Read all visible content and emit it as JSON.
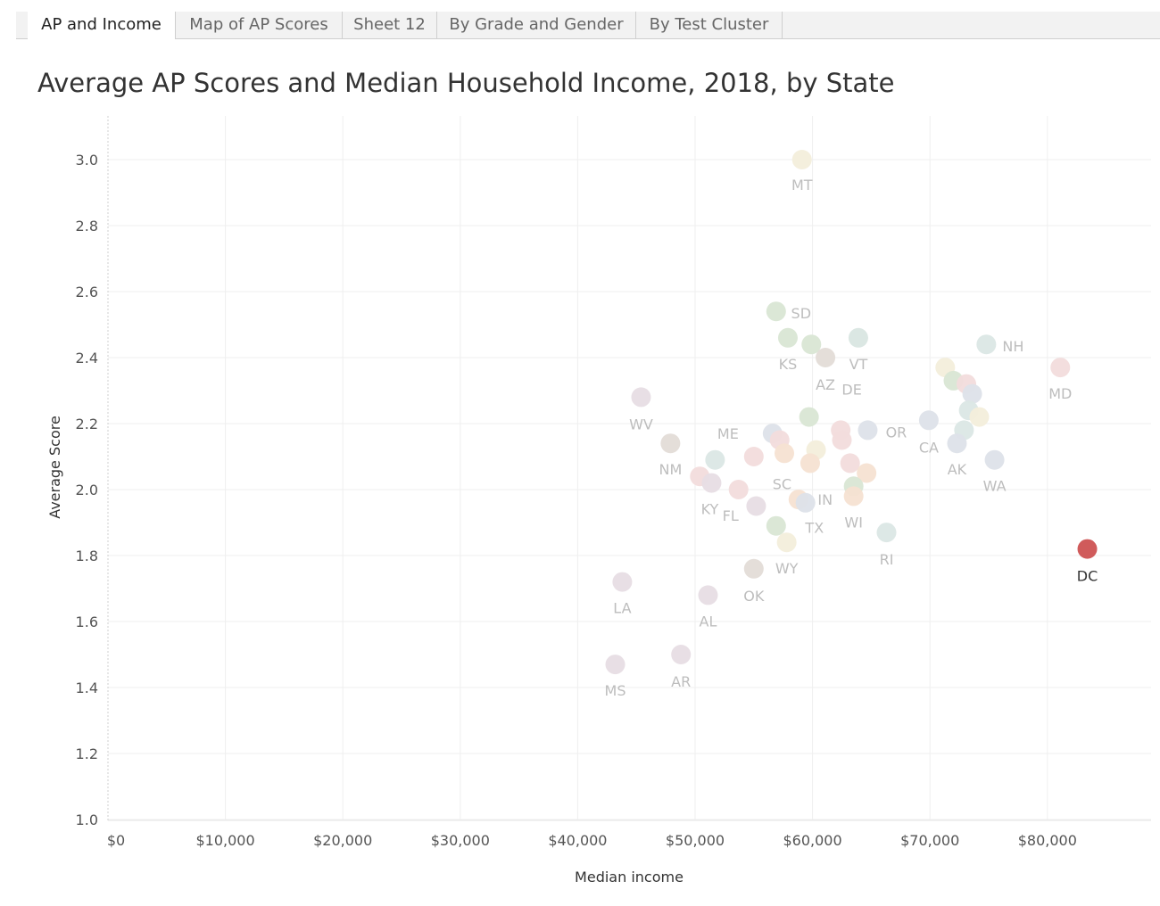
{
  "tabs": [
    {
      "label": "AP and Income",
      "active": true
    },
    {
      "label": "Map of AP Scores",
      "active": false
    },
    {
      "label": "Sheet 12",
      "active": false
    },
    {
      "label": "By Grade and Gender",
      "active": false
    },
    {
      "label": "By Test Cluster",
      "active": false
    }
  ],
  "chart_data": {
    "type": "scatter",
    "title": "Average AP Scores and Median Household Income, 2018, by State",
    "xlabel": "Median income",
    "ylabel": "Average Score",
    "xlim": [
      0,
      88000
    ],
    "ylim": [
      0.97,
      3.13
    ],
    "x_ticks": [
      0,
      10000,
      20000,
      30000,
      40000,
      50000,
      60000,
      70000,
      80000
    ],
    "x_tick_labels": [
      "$0",
      "$10,000",
      "$20,000",
      "$30,000",
      "$40,000",
      "$50,000",
      "$60,000",
      "$70,000",
      "$80,000"
    ],
    "y_ticks": [
      1.0,
      1.2,
      1.4,
      1.6,
      1.8,
      2.0,
      2.2,
      2.4,
      2.6,
      2.8,
      3.0
    ],
    "y_tick_labels": [
      "1.0",
      "1.2",
      "1.4",
      "1.6",
      "1.8",
      "2.0",
      "2.2",
      "2.4",
      "2.6",
      "2.8",
      "3.0"
    ],
    "highlight_color": "#d05b5b",
    "label_color": "#bdbdbd",
    "highlight_label_color": "#333333",
    "grid": true,
    "points": [
      {
        "x": 59100,
        "y": 3.0,
        "color": "#f3eedb",
        "label": "MT"
      },
      {
        "x": 56900,
        "y": 2.54,
        "color": "#d9e6d4",
        "label": "SD"
      },
      {
        "x": 57900,
        "y": 2.46,
        "color": "#d9e6d4",
        "label": "KS"
      },
      {
        "x": 59900,
        "y": 2.44,
        "color": "#d9e6d4",
        "label": ""
      },
      {
        "x": 61100,
        "y": 2.4,
        "color": "#e3dcd7",
        "label": "AZ"
      },
      {
        "x": 63900,
        "y": 2.46,
        "color": "#d9e6e2",
        "label": "VT"
      },
      {
        "x": 74800,
        "y": 2.44,
        "color": "#dbe7e5",
        "label": "NH"
      },
      {
        "x": 81100,
        "y": 2.37,
        "color": "#f2dcdc",
        "label": "MD"
      },
      {
        "x": 71300,
        "y": 2.37,
        "color": "#f3eedb",
        "label": ""
      },
      {
        "x": 72000,
        "y": 2.33,
        "color": "#d9e6d4",
        "label": ""
      },
      {
        "x": 73100,
        "y": 2.32,
        "color": "#f2dcdc",
        "label": ""
      },
      {
        "x": 73600,
        "y": 2.29,
        "color": "#dde2e9",
        "label": ""
      },
      {
        "x": 73300,
        "y": 2.24,
        "color": "#dbe7e5",
        "label": ""
      },
      {
        "x": 74200,
        "y": 2.22,
        "color": "#f3eedb",
        "label": ""
      },
      {
        "x": 72900,
        "y": 2.18,
        "color": "#dbe7e5",
        "label": ""
      },
      {
        "x": 69900,
        "y": 2.21,
        "color": "#dde2e9",
        "label": "CA"
      },
      {
        "x": 72300,
        "y": 2.14,
        "color": "#dde2e9",
        "label": "AK"
      },
      {
        "x": 75500,
        "y": 2.09,
        "color": "#dde2e9",
        "label": "WA"
      },
      {
        "x": 45400,
        "y": 2.28,
        "color": "#e7dde4",
        "label": "WV"
      },
      {
        "x": 47900,
        "y": 2.14,
        "color": "#e3dcd7",
        "label": "NM"
      },
      {
        "x": 51700,
        "y": 2.09,
        "color": "#dbe7e5",
        "label": ""
      },
      {
        "x": 56600,
        "y": 2.17,
        "color": "#dde2e9",
        "label": "ME"
      },
      {
        "x": 57200,
        "y": 2.15,
        "color": "#f2dcdc",
        "label": ""
      },
      {
        "x": 59700,
        "y": 2.22,
        "color": "#d9e6d4",
        "label": "DE"
      },
      {
        "x": 62400,
        "y": 2.18,
        "color": "#f2dcdc",
        "label": ""
      },
      {
        "x": 62500,
        "y": 2.15,
        "color": "#f2dcdc",
        "label": ""
      },
      {
        "x": 64700,
        "y": 2.18,
        "color": "#dde2e9",
        "label": "OR"
      },
      {
        "x": 55000,
        "y": 2.1,
        "color": "#f2dcdc",
        "label": ""
      },
      {
        "x": 57600,
        "y": 2.11,
        "color": "#f5e2d2",
        "label": ""
      },
      {
        "x": 60300,
        "y": 2.12,
        "color": "#f3eedb",
        "label": ""
      },
      {
        "x": 59800,
        "y": 2.08,
        "color": "#f5e2d2",
        "label": ""
      },
      {
        "x": 63200,
        "y": 2.08,
        "color": "#f2dcdc",
        "label": ""
      },
      {
        "x": 64600,
        "y": 2.05,
        "color": "#f5e2d2",
        "label": ""
      },
      {
        "x": 50400,
        "y": 2.04,
        "color": "#f2dcdc",
        "label": ""
      },
      {
        "x": 51400,
        "y": 2.02,
        "color": "#e7dde4",
        "label": "KY"
      },
      {
        "x": 53700,
        "y": 2.0,
        "color": "#f2dcdc",
        "label": "FL"
      },
      {
        "x": 55200,
        "y": 1.95,
        "color": "#e7dde4",
        "label": "SC"
      },
      {
        "x": 58800,
        "y": 1.97,
        "color": "#f5e2d2",
        "label": ""
      },
      {
        "x": 59400,
        "y": 1.96,
        "color": "#dde2e9",
        "label": "IN"
      },
      {
        "x": 63500,
        "y": 2.01,
        "color": "#d9e6d4",
        "label": ""
      },
      {
        "x": 63500,
        "y": 1.98,
        "color": "#f5e2d2",
        "label": "WI"
      },
      {
        "x": 56900,
        "y": 1.89,
        "color": "#d9e6d4",
        "label": "TX"
      },
      {
        "x": 57800,
        "y": 1.84,
        "color": "#f3eedb",
        "label": "WY"
      },
      {
        "x": 66300,
        "y": 1.87,
        "color": "#dbe7e5",
        "label": "RI"
      },
      {
        "x": 55000,
        "y": 1.76,
        "color": "#e3dcd7",
        "label": "OK"
      },
      {
        "x": 51100,
        "y": 1.68,
        "color": "#e7dde4",
        "label": "AL"
      },
      {
        "x": 43800,
        "y": 1.72,
        "color": "#e7dde4",
        "label": "LA"
      },
      {
        "x": 43200,
        "y": 1.47,
        "color": "#e7dde4",
        "label": "MS"
      },
      {
        "x": 48800,
        "y": 1.5,
        "color": "#e7dde4",
        "label": "AR"
      },
      {
        "x": 83400,
        "y": 1.82,
        "color": "#d05b5b",
        "label": "DC",
        "highlighted": true
      }
    ]
  }
}
